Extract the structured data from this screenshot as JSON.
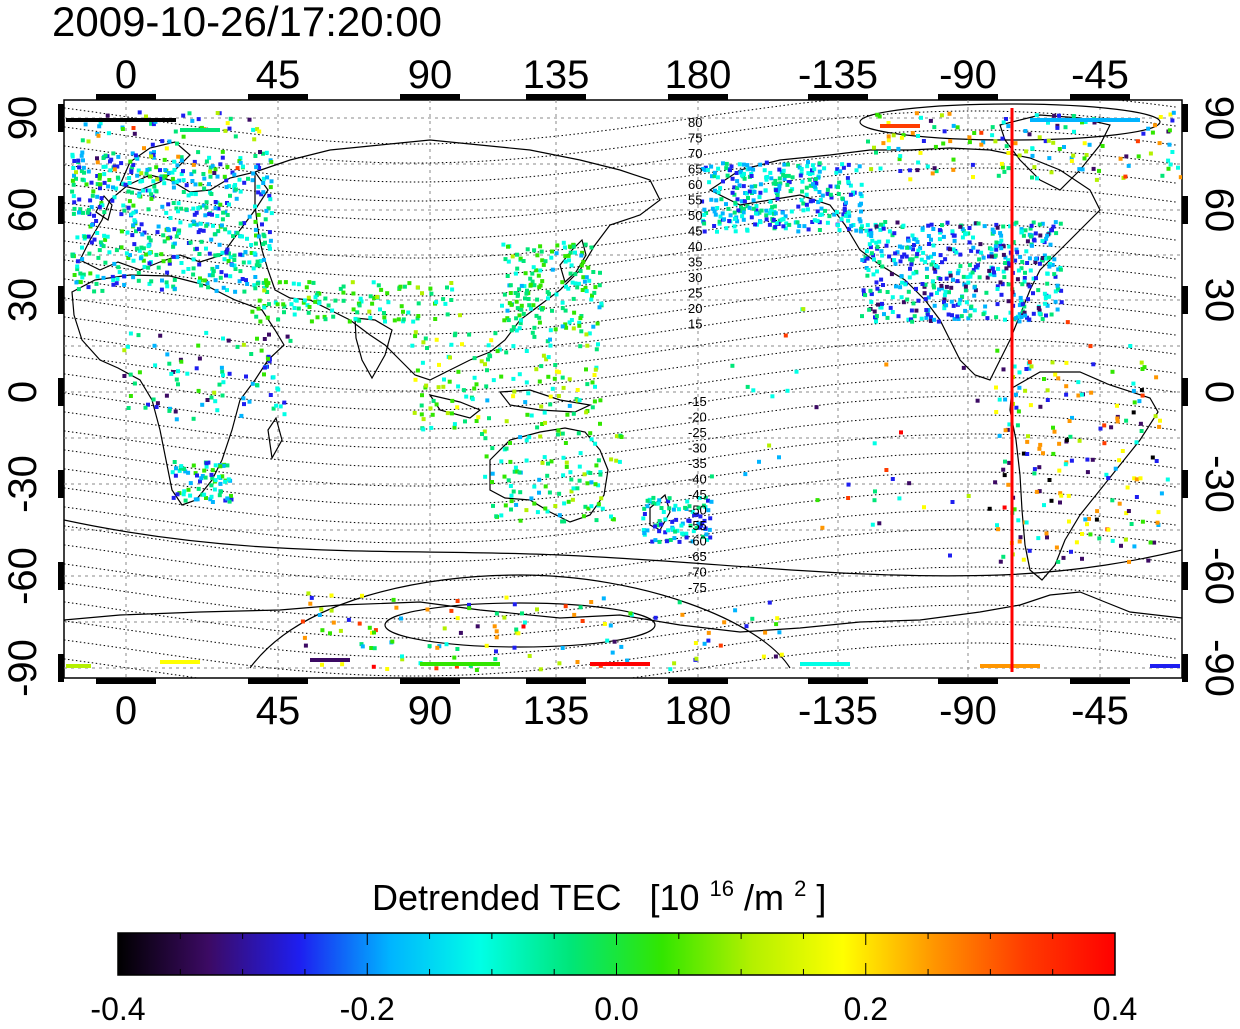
{
  "timestamp": "2009-10-26/17:20:00",
  "lon_tick_labels": [
    "0",
    "45",
    "90",
    "135",
    "180",
    "-135",
    "-90",
    "-45"
  ],
  "lat_tick_labels": [
    "90",
    "60",
    "30",
    "0",
    "-30",
    "-60",
    "-90"
  ],
  "contour_labels_north": [
    "80",
    "75",
    "70",
    "65",
    "60",
    "55",
    "50",
    "45",
    "40",
    "35",
    "30",
    "25",
    "20",
    "15"
  ],
  "contour_labels_south": [
    "-15",
    "-20",
    "-25",
    "-30",
    "-35",
    "-40",
    "-45",
    "-50",
    "-55",
    "-60",
    "-65",
    "-70",
    "-75"
  ],
  "colorbar": {
    "title_main": "Detrended TEC",
    "title_unit_open": "[10",
    "title_unit_sup1": "16",
    "title_unit_mid": "/m",
    "title_unit_sup2": "2",
    "title_unit_close": "]",
    "tick_labels": [
      "-0.4",
      "-0.2",
      "0.0",
      "0.2",
      "0.4"
    ],
    "stops": [
      "#000000",
      "#3c0a64",
      "#1e1ef0",
      "#00b4ff",
      "#00ffe6",
      "#00e678",
      "#32e600",
      "#b4f000",
      "#ffff00",
      "#ff9600",
      "#ff3c00",
      "#ff0000"
    ]
  },
  "terminator_line_color": "#ff0000",
  "terminator_longitude": -80
}
